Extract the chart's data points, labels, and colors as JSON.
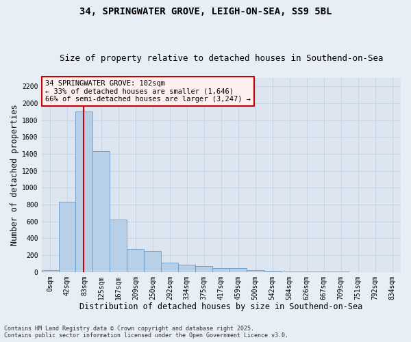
{
  "title1": "34, SPRINGWATER GROVE, LEIGH-ON-SEA, SS9 5BL",
  "title2": "Size of property relative to detached houses in Southend-on-Sea",
  "xlabel": "Distribution of detached houses by size in Southend-on-Sea",
  "ylabel": "Number of detached properties",
  "bin_labels": [
    "0sqm",
    "42sqm",
    "83sqm",
    "125sqm",
    "167sqm",
    "209sqm",
    "250sqm",
    "292sqm",
    "334sqm",
    "375sqm",
    "417sqm",
    "459sqm",
    "500sqm",
    "542sqm",
    "584sqm",
    "626sqm",
    "667sqm",
    "709sqm",
    "751sqm",
    "792sqm",
    "834sqm"
  ],
  "bar_values": [
    25,
    830,
    1900,
    1430,
    620,
    270,
    250,
    110,
    85,
    70,
    45,
    45,
    20,
    10,
    8,
    5,
    4,
    2,
    1,
    1,
    1
  ],
  "bar_color": "#b8cfe8",
  "bar_edge_color": "#6699cc",
  "background_color": "#dde6f0",
  "grid_color": "#c8d4e4",
  "fig_bg_color": "#e8eef6",
  "ylim": [
    0,
    2300
  ],
  "yticks": [
    0,
    200,
    400,
    600,
    800,
    1000,
    1200,
    1400,
    1600,
    1800,
    2000,
    2200
  ],
  "annotation_text": "34 SPRINGWATER GROVE: 102sqm\n← 33% of detached houses are smaller (1,646)\n66% of semi-detached houses are larger (3,247) →",
  "annotation_box_facecolor": "#fff0f0",
  "annotation_border_color": "#cc0000",
  "red_line_color": "#cc0000",
  "footnote": "Contains HM Land Registry data © Crown copyright and database right 2025.\nContains public sector information licensed under the Open Government Licence v3.0.",
  "title_fontsize": 10,
  "subtitle_fontsize": 9,
  "axis_label_fontsize": 8.5,
  "tick_fontsize": 7,
  "annotation_fontsize": 7.5,
  "footnote_fontsize": 6
}
